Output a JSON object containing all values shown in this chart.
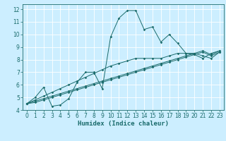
{
  "title": "",
  "xlabel": "Humidex (Indice chaleur)",
  "ylabel": "",
  "bg_color": "#cceeff",
  "grid_color": "#ffffff",
  "line_color": "#1a6b6b",
  "xlim": [
    -0.5,
    23.5
  ],
  "ylim": [
    4,
    12.4
  ],
  "xticks": [
    0,
    1,
    2,
    3,
    4,
    5,
    6,
    7,
    8,
    9,
    10,
    11,
    12,
    13,
    14,
    15,
    16,
    17,
    18,
    19,
    20,
    21,
    22,
    23
  ],
  "yticks": [
    4,
    5,
    6,
    7,
    8,
    9,
    10,
    11,
    12
  ],
  "curve1_x": [
    0,
    1,
    2,
    3,
    4,
    5,
    6,
    7,
    8,
    9,
    10,
    11,
    12,
    13,
    14,
    15,
    16,
    17,
    18,
    19,
    20,
    21,
    22,
    23
  ],
  "curve1_y": [
    4.5,
    5.0,
    5.8,
    4.3,
    4.4,
    4.9,
    6.2,
    7.0,
    7.0,
    5.7,
    9.8,
    11.3,
    11.9,
    11.9,
    10.4,
    10.6,
    9.4,
    10.0,
    9.3,
    8.5,
    8.4,
    8.1,
    8.5,
    8.7
  ],
  "curve2_x": [
    0,
    1,
    2,
    3,
    4,
    5,
    6,
    7,
    8,
    9,
    10,
    11,
    12,
    13,
    14,
    15,
    16,
    17,
    18,
    19,
    20,
    21,
    22,
    23
  ],
  "curve2_y": [
    4.5,
    4.8,
    5.1,
    5.4,
    5.7,
    6.0,
    6.3,
    6.6,
    6.9,
    7.2,
    7.5,
    7.7,
    7.9,
    8.1,
    8.1,
    8.1,
    8.1,
    8.3,
    8.5,
    8.5,
    8.5,
    8.3,
    8.1,
    8.6
  ],
  "curve3_x": [
    0,
    1,
    2,
    3,
    4,
    5,
    6,
    7,
    8,
    9,
    10,
    11,
    12,
    13,
    14,
    15,
    16,
    17,
    18,
    19,
    20,
    21,
    22,
    23
  ],
  "curve3_y": [
    4.5,
    4.7,
    4.9,
    5.1,
    5.3,
    5.5,
    5.7,
    5.9,
    6.1,
    6.3,
    6.5,
    6.7,
    6.9,
    7.1,
    7.3,
    7.5,
    7.7,
    7.9,
    8.1,
    8.3,
    8.5,
    8.7,
    8.4,
    8.7
  ],
  "curve4_x": [
    0,
    1,
    2,
    3,
    4,
    5,
    6,
    7,
    8,
    9,
    10,
    11,
    12,
    13,
    14,
    15,
    16,
    17,
    18,
    19,
    20,
    21,
    22,
    23
  ],
  "curve4_y": [
    4.5,
    4.6,
    4.8,
    5.0,
    5.2,
    5.4,
    5.6,
    5.8,
    6.0,
    6.2,
    6.4,
    6.6,
    6.8,
    7.0,
    7.2,
    7.4,
    7.6,
    7.8,
    8.0,
    8.2,
    8.4,
    8.6,
    8.3,
    8.6
  ],
  "tick_fontsize": 5.5,
  "xlabel_fontsize": 6.5,
  "lw": 0.7,
  "ms": 1.8
}
